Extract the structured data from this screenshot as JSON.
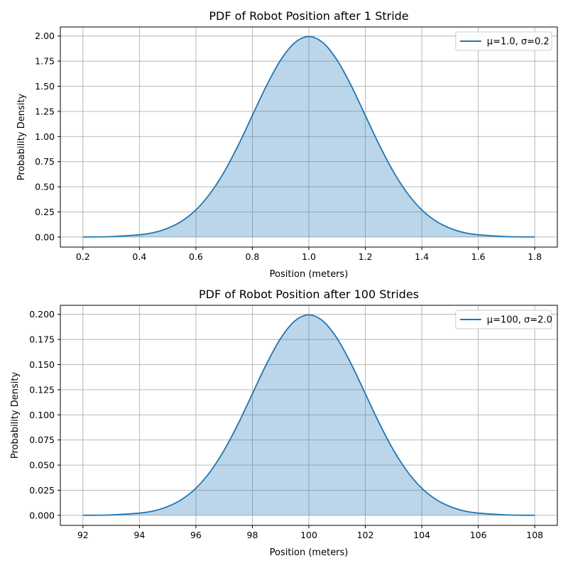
{
  "figure": {
    "background": "#ffffff",
    "line_color": "#1f77b4",
    "fill_color": "#1f77b4",
    "fill_opacity": 0.3,
    "grid_color": "#b0b0b0"
  },
  "chart_data": [
    {
      "type": "area",
      "title": "PDF of Robot Position after 1 Stride",
      "xlabel": "Position (meters)",
      "ylabel": "Probability Density",
      "xlim": [
        0.12,
        1.88
      ],
      "ylim": [
        -0.1,
        2.09
      ],
      "grid": true,
      "legend_position": "top-right",
      "x_ticks": [
        0.2,
        0.4,
        0.6,
        0.8,
        1.0,
        1.2,
        1.4,
        1.6,
        1.8
      ],
      "x_tick_labels": [
        "0.2",
        "0.4",
        "0.6",
        "0.8",
        "1.0",
        "1.2",
        "1.4",
        "1.6",
        "1.8"
      ],
      "y_ticks": [
        0,
        0.25,
        0.5,
        0.75,
        1.0,
        1.25,
        1.5,
        1.75,
        2.0
      ],
      "y_tick_labels": [
        "0.00",
        "0.25",
        "0.50",
        "0.75",
        "1.00",
        "1.25",
        "1.50",
        "1.75",
        "2.00"
      ],
      "series": [
        {
          "name": "μ=1.0, σ=0.2",
          "x": [
            0.2,
            0.3,
            0.4,
            0.45,
            0.5,
            0.55,
            0.6,
            0.65,
            0.7,
            0.75,
            0.8,
            0.85,
            0.9,
            0.95,
            1.0,
            1.05,
            1.1,
            1.15,
            1.2,
            1.25,
            1.3,
            1.35,
            1.4,
            1.45,
            1.5,
            1.55,
            1.6,
            1.7,
            1.8
          ],
          "values": [
            0.0007,
            0.0044,
            0.0222,
            0.0436,
            0.0876,
            0.1587,
            0.27,
            0.4317,
            0.6476,
            0.9132,
            1.2099,
            1.5058,
            1.7603,
            1.9333,
            1.9947,
            1.9333,
            1.7603,
            1.5058,
            1.2099,
            0.9132,
            0.6476,
            0.4317,
            0.27,
            0.1587,
            0.0876,
            0.0436,
            0.0222,
            0.0044,
            0.0007
          ]
        }
      ]
    },
    {
      "type": "area",
      "title": "PDF of Robot Position after 100 Strides",
      "xlabel": "Position (meters)",
      "ylabel": "Probability Density",
      "xlim": [
        91.2,
        108.8
      ],
      "ylim": [
        -0.01,
        0.209
      ],
      "grid": true,
      "legend_position": "top-right",
      "x_ticks": [
        92,
        94,
        96,
        98,
        100,
        102,
        104,
        106,
        108
      ],
      "x_tick_labels": [
        "92",
        "94",
        "96",
        "98",
        "100",
        "102",
        "104",
        "106",
        "108"
      ],
      "y_ticks": [
        0,
        0.025,
        0.05,
        0.075,
        0.1,
        0.125,
        0.15,
        0.175,
        0.2
      ],
      "y_tick_labels": [
        "0.000",
        "0.025",
        "0.050",
        "0.075",
        "0.100",
        "0.125",
        "0.150",
        "0.175",
        "0.200"
      ],
      "series": [
        {
          "name": "μ=100, σ=2.0",
          "x": [
            92,
            93,
            94,
            94.5,
            95,
            95.5,
            96,
            96.5,
            97,
            97.5,
            98,
            98.5,
            99,
            99.5,
            100,
            100.5,
            101,
            101.5,
            102,
            102.5,
            103,
            103.5,
            104,
            104.5,
            105,
            105.5,
            106,
            107,
            108
          ],
          "values": [
            7e-05,
            0.00044,
            0.00222,
            0.00436,
            0.00876,
            0.01587,
            0.027,
            0.04317,
            0.06476,
            0.09132,
            0.12099,
            0.15058,
            0.17603,
            0.19333,
            0.19947,
            0.19333,
            0.17603,
            0.15058,
            0.12099,
            0.09132,
            0.06476,
            0.04317,
            0.027,
            0.01587,
            0.00876,
            0.00436,
            0.00222,
            0.00044,
            7e-05
          ]
        }
      ]
    }
  ]
}
